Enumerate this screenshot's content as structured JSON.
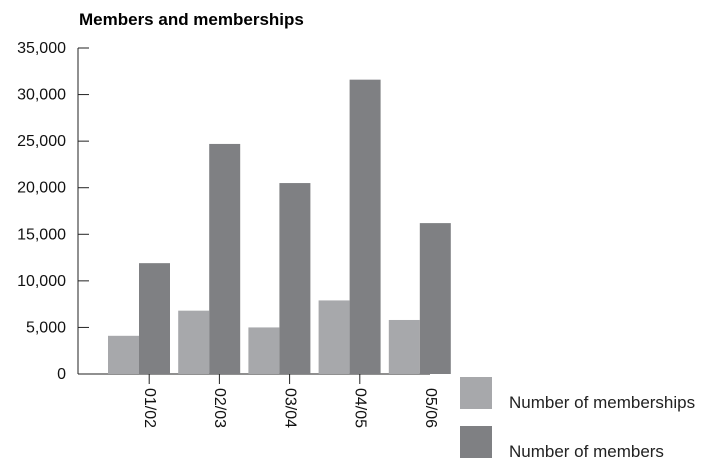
{
  "chart_data": {
    "type": "bar",
    "title": "Members and memberships",
    "xlabel": "",
    "ylabel": "",
    "categories": [
      "01/02",
      "02/03",
      "03/04",
      "04/05",
      "05/06"
    ],
    "series": [
      {
        "name": "Number of memberships",
        "color": "#a7a8ab",
        "values": [
          4100,
          6800,
          5000,
          7900,
          5800
        ]
      },
      {
        "name": "Number of members",
        "color": "#7f8083",
        "values": [
          11900,
          24700,
          20500,
          31600,
          16200
        ]
      }
    ],
    "ylim": [
      0,
      35000
    ],
    "yticks": [
      "0",
      "5,000",
      "10,000",
      "15,000",
      "20,000",
      "25,000",
      "30,000",
      "35,000"
    ],
    "grid": false,
    "legend_position": "bottom-right"
  }
}
